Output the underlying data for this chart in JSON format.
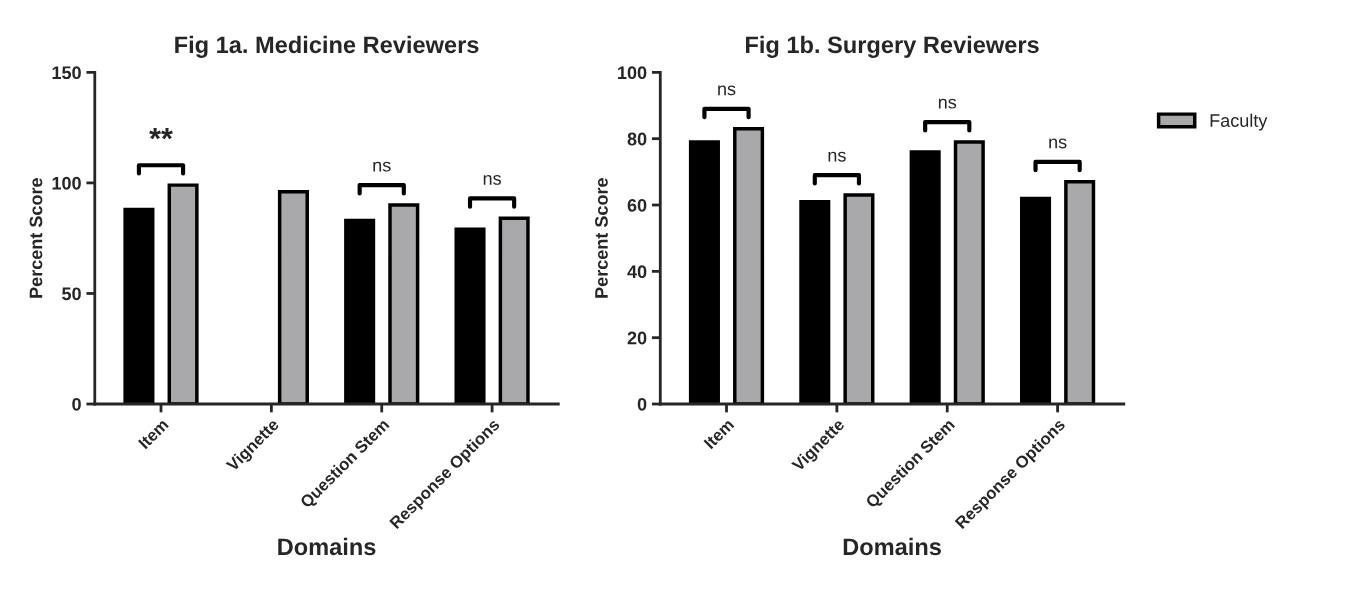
{
  "chart_data": [
    {
      "type": "bar",
      "title": "Fig 1a. Medicine Reviewers",
      "xlabel": "Domains",
      "ylabel": "Percent Score",
      "categories": [
        "Item",
        "Vignette",
        "Question Stem",
        "Response Options"
      ],
      "series": [
        {
          "color": "#000000",
          "values": [
            88,
            null,
            83,
            79
          ]
        },
        {
          "color": "#a9a9ac",
          "values": [
            99,
            96,
            90,
            84
          ]
        }
      ],
      "ylim": [
        0,
        150
      ],
      "yticks": [
        0,
        50,
        100,
        150
      ],
      "grid": false,
      "annotations": [
        "**",
        "ns",
        "ns"
      ]
    },
    {
      "type": "bar",
      "title": "Fig 1b. Surgery Reviewers",
      "xlabel": "Domains",
      "ylabel": "Percent Score",
      "categories": [
        "Item",
        "Vignette",
        "Question Stem",
        "Response Options"
      ],
      "series": [
        {
          "color": "#000000",
          "values": [
            79,
            61,
            76,
            62
          ]
        },
        {
          "name": "Faculty",
          "color": "#a9a9ac",
          "values": [
            83,
            63,
            79,
            67
          ]
        }
      ],
      "ylim": [
        0,
        100
      ],
      "yticks": [
        0,
        20,
        40,
        60,
        80,
        100
      ],
      "grid": false,
      "legend": "right",
      "annotations": [
        "ns",
        "ns",
        "ns",
        "ns"
      ]
    }
  ]
}
